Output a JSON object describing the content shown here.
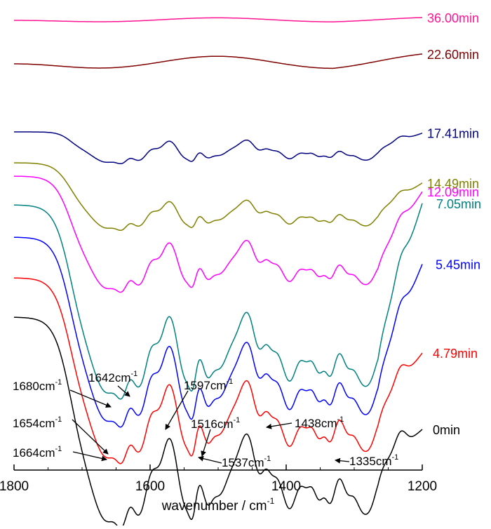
{
  "chart_data": {
    "type": "line",
    "xlabel": "wavenumber / cm",
    "xlabel_sup": "-1",
    "xlim": [
      1800,
      1200
    ],
    "x_reversed": true,
    "ticks": [
      1800,
      1600,
      1400,
      1200
    ],
    "tick_labels": [
      "1800",
      "1600",
      "1400",
      "1200"
    ],
    "grid": false,
    "series": [
      {
        "name": "0min",
        "color": "#000000",
        "base": 452,
        "profile": "full",
        "amp": 1.0,
        "rise": 55
      },
      {
        "name": "4.79min",
        "color": "#ff0000",
        "base": 396,
        "profile": "full",
        "amp": 0.88,
        "rise": 82
      },
      {
        "name": "5.45min",
        "color": "#0000ff",
        "base": 338,
        "profile": "full",
        "amp": 0.9,
        "rise": 155
      },
      {
        "name": "7.05min",
        "color": "#008080",
        "base": 292,
        "profile": "full",
        "amp": 0.92,
        "rise": 200
      },
      {
        "name": "12.09min",
        "color": "#ff00ff",
        "base": 251,
        "profile": "full",
        "amp": 0.55,
        "rise": 96
      },
      {
        "name": "14.49min",
        "color": "#808000",
        "base": 232,
        "profile": "full",
        "amp": 0.32,
        "rise": 40
      },
      {
        "name": "17.41min",
        "color": "#000080",
        "base": 188,
        "profile": "flat",
        "amp": 0.25,
        "rise": 22
      },
      {
        "name": "22.60min",
        "color": "#800000",
        "base": 91,
        "profile": "ripple",
        "amp": 0.06,
        "rise": 14
      },
      {
        "name": "36.00min",
        "color": "#ff1493",
        "base": 29,
        "profile": "ripple",
        "amp": 0.02,
        "rise": 4
      }
    ],
    "annotations": [
      {
        "label": "1680cm",
        "sup": "-1",
        "wavenumber": 1680
      },
      {
        "label": "1642cm",
        "sup": "-1",
        "wavenumber": 1642
      },
      {
        "label": "1597cm",
        "sup": "-1",
        "wavenumber": 1597
      },
      {
        "label": "1654cm",
        "sup": "-1",
        "wavenumber": 1654
      },
      {
        "label": "1516cm",
        "sup": "-1",
        "wavenumber": 1516
      },
      {
        "label": "1438cm",
        "sup": "-1",
        "wavenumber": 1438
      },
      {
        "label": "1664cm",
        "sup": "-1",
        "wavenumber": 1664
      },
      {
        "label": "1537cm",
        "sup": "-1",
        "wavenumber": 1537
      },
      {
        "label": "1335cm",
        "sup": "-1",
        "wavenumber": 1335
      }
    ]
  }
}
